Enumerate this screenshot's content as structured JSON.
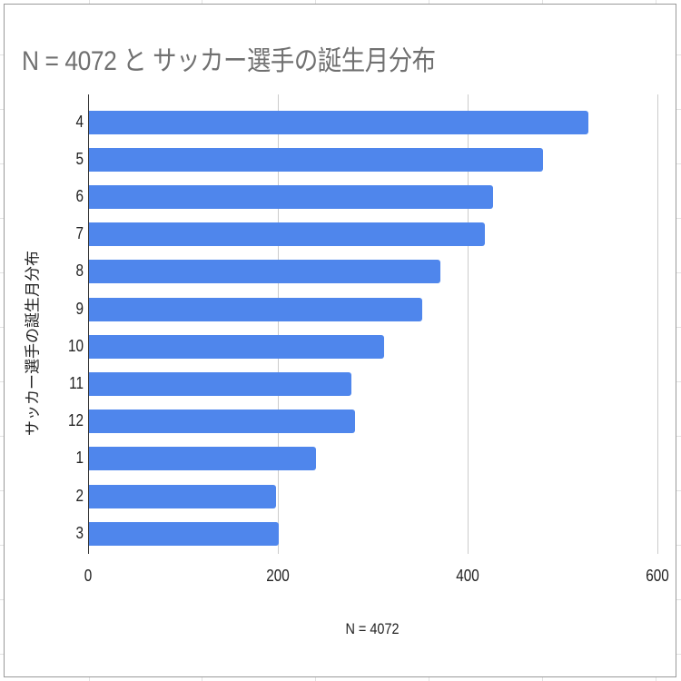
{
  "chart_data": {
    "type": "bar",
    "orientation": "horizontal",
    "title": "N = 4072 と サッカー選手の誕生月分布",
    "xlabel": "N = 4072",
    "ylabel": "サッカー選手の誕生月分布",
    "categories": [
      "4",
      "5",
      "6",
      "7",
      "8",
      "9",
      "10",
      "11",
      "12",
      "1",
      "2",
      "3"
    ],
    "values": [
      526,
      478,
      426,
      417,
      370,
      351,
      311,
      277,
      280,
      239,
      197,
      200
    ],
    "xlim": [
      0,
      600
    ],
    "x_ticks": [
      "0",
      "200",
      "400",
      "600"
    ],
    "grid": "vertical",
    "legend": "none",
    "bar_color": "#4f86ec"
  }
}
